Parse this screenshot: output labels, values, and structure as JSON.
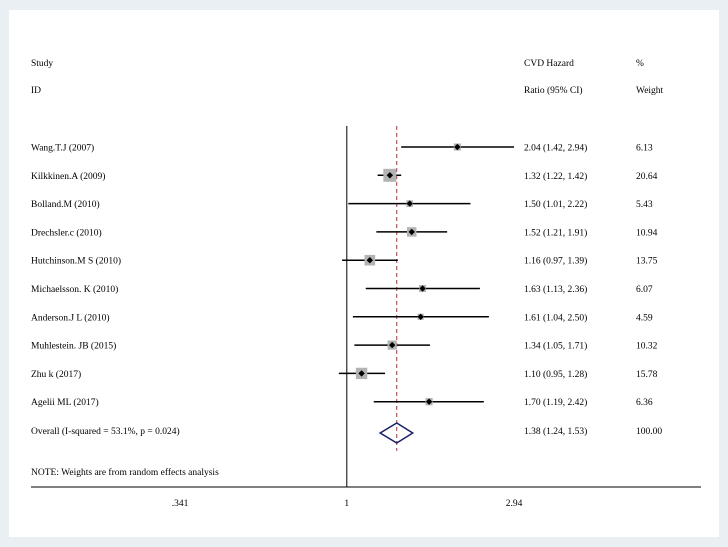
{
  "chart_data": {
    "type": "forest",
    "scale": "log",
    "xlim": [
      0.341,
      2.94
    ],
    "reference_line": 1,
    "overall_line": 1.38,
    "xticks": [
      {
        "value": 0.341,
        "label": ".341"
      },
      {
        "value": 1,
        "label": "1"
      },
      {
        "value": 2.94,
        "label": "2.94"
      }
    ],
    "header": {
      "study_line1": "Study",
      "study_line2": "ID",
      "effect_line1": "CVD Hazard",
      "effect_line2": "Ratio (95% CI)",
      "weight_line1": "%",
      "weight_line2": "Weight"
    },
    "studies": [
      {
        "label": "Wang.T.J (2007)",
        "est": 2.04,
        "lo": 1.42,
        "hi": 2.94,
        "ci_text": "2.04 (1.42, 2.94)",
        "weight": 6.13,
        "weight_text": "6.13"
      },
      {
        "label": "Kilkkinen.A (2009)",
        "est": 1.32,
        "lo": 1.22,
        "hi": 1.42,
        "ci_text": "1.32 (1.22, 1.42)",
        "weight": 20.64,
        "weight_text": "20.64"
      },
      {
        "label": "Bolland.M (2010)",
        "est": 1.5,
        "lo": 1.01,
        "hi": 2.22,
        "ci_text": "1.50 (1.01, 2.22)",
        "weight": 5.43,
        "weight_text": "5.43"
      },
      {
        "label": "Drechsler.c (2010)",
        "est": 1.52,
        "lo": 1.21,
        "hi": 1.91,
        "ci_text": "1.52 (1.21, 1.91)",
        "weight": 10.94,
        "weight_text": "10.94"
      },
      {
        "label": "Hutchinson.M S (2010)",
        "est": 1.16,
        "lo": 0.97,
        "hi": 1.39,
        "ci_text": "1.16 (0.97, 1.39)",
        "weight": 13.75,
        "weight_text": "13.75"
      },
      {
        "label": "Michaelsson. K (2010)",
        "est": 1.63,
        "lo": 1.13,
        "hi": 2.36,
        "ci_text": "1.63 (1.13, 2.36)",
        "weight": 6.07,
        "weight_text": "6.07"
      },
      {
        "label": "Anderson.J L (2010)",
        "est": 1.61,
        "lo": 1.04,
        "hi": 2.5,
        "ci_text": "1.61 (1.04, 2.50)",
        "weight": 4.59,
        "weight_text": "4.59"
      },
      {
        "label": "Muhlestein. JB (2015)",
        "est": 1.34,
        "lo": 1.05,
        "hi": 1.71,
        "ci_text": "1.34 (1.05, 1.71)",
        "weight": 10.32,
        "weight_text": "10.32"
      },
      {
        "label": "Zhu k (2017)",
        "est": 1.1,
        "lo": 0.95,
        "hi": 1.28,
        "ci_text": "1.10 (0.95, 1.28)",
        "weight": 15.78,
        "weight_text": "15.78"
      },
      {
        "label": "Agelii ML (2017)",
        "est": 1.7,
        "lo": 1.19,
        "hi": 2.42,
        "ci_text": "1.70 (1.19, 2.42)",
        "weight": 6.36,
        "weight_text": "6.36"
      }
    ],
    "overall": {
      "label": "Overall  (I-squared = 53.1%, p = 0.024)",
      "est": 1.38,
      "lo": 1.24,
      "hi": 1.53,
      "ci_text": "1.38 (1.24, 1.53)",
      "weight_text": "100.00"
    },
    "note": "NOTE: Weights are from random effects analysis",
    "colors": {
      "reference_line": "#000000",
      "overall_line": "#c0283a",
      "weight_box": "#b3b3b3",
      "point": "#000000",
      "diamond": "#1a1f6b",
      "background": "#e9eff2",
      "panel": "#ffffff"
    }
  }
}
